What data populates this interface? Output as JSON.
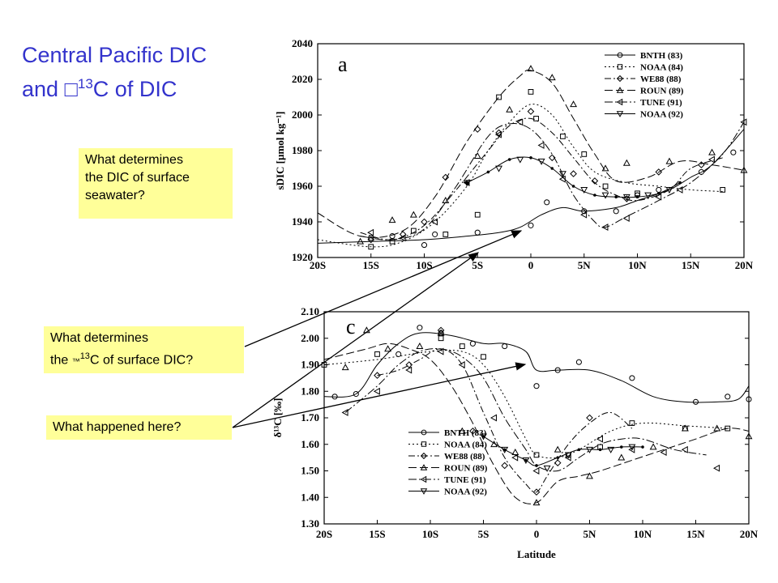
{
  "slide": {
    "title_line1": "Central Pacific DIC",
    "title_line2_pre": "and ",
    "title_glyph": "□",
    "title_sup": "13",
    "title_line2_post": "C  of DIC"
  },
  "notes": {
    "dic_question": [
      "What determines",
      "the DIC of surface",
      "seawater?"
    ],
    "d13c_question_line1": "What determines",
    "d13c_question_pre": "the ",
    "d13c_question_glyph": "™",
    "d13c_question_sup": "13",
    "d13c_question_post": "C of surface DIC?",
    "happened_question": "What happened here?"
  },
  "chart_data": [
    {
      "type": "line",
      "panel_label": "a",
      "ylabel": "sDIC [µmol kg⁻¹]",
      "xlabel": "",
      "ylim": [
        1920,
        2040
      ],
      "yticks": [
        "1920",
        "1940",
        "1960",
        "1980",
        "2000",
        "2020",
        "2040"
      ],
      "xlim": [
        -20,
        20
      ],
      "xticks": [
        "20S",
        "15S",
        "10S",
        "5S",
        "0",
        "5N",
        "10N",
        "15N",
        "20N"
      ],
      "legend_position": "top-right",
      "series": [
        {
          "name": "BNTH (83)",
          "marker": "circle",
          "dash": "none",
          "x": [
            -20,
            -15,
            -10,
            -6,
            -3,
            -1,
            1,
            3,
            5,
            8,
            10,
            13,
            15,
            17,
            20
          ],
          "y": [
            1928,
            1929,
            1930,
            1932,
            1934,
            1937,
            1944,
            1948,
            1946,
            1948,
            1952,
            1958,
            1965,
            1972,
            1992
          ],
          "points_x": [
            -15,
            -13,
            -10,
            -9,
            -5,
            0,
            1.5,
            5,
            8,
            10,
            12,
            16,
            19
          ],
          "points_y": [
            1931,
            1932,
            1927,
            1933,
            1934,
            1938,
            1951,
            1946,
            1946,
            1955,
            1958,
            1968,
            1979
          ]
        },
        {
          "name": "NOAA (84)",
          "marker": "square",
          "dash": "2,3",
          "x": [
            -20,
            -15,
            -12,
            -9,
            -6,
            -4,
            -2,
            0,
            2,
            4,
            6,
            9,
            12,
            15,
            18
          ],
          "y": [
            1930,
            1926,
            1929,
            1940,
            1960,
            1980,
            1996,
            2006,
            2000,
            1982,
            1968,
            1962,
            1960,
            1958,
            1957
          ],
          "points_x": [
            -15,
            -13,
            -11,
            -8,
            -5,
            -3,
            0,
            0.5,
            3,
            5,
            7,
            10,
            18
          ],
          "points_y": [
            1926,
            1929,
            1935,
            1933,
            1944,
            2010,
            2013,
            1998,
            1988,
            1978,
            1960,
            1956,
            1958
          ]
        },
        {
          "name": "WE88 (88)",
          "marker": "diamond",
          "dash": "8,3,2,3",
          "x": [
            -16,
            -13,
            -10,
            -7,
            -4,
            -2,
            0,
            2,
            4,
            6,
            8,
            10,
            13,
            15,
            18
          ],
          "y": [
            1934,
            1930,
            1938,
            1958,
            1980,
            1994,
            1998,
            1990,
            1976,
            1962,
            1955,
            1952,
            1958,
            1970,
            1976
          ],
          "points_x": [
            -15,
            -12,
            -10,
            -8,
            -5,
            -3,
            0,
            2,
            4,
            6,
            9,
            12,
            16
          ],
          "points_y": [
            1930,
            1933,
            1940,
            1965,
            1992,
            1990,
            2002,
            1976,
            1967,
            1963,
            1953,
            1968,
            1972
          ]
        },
        {
          "name": "ROUN (89)",
          "marker": "triangle",
          "dash": "10,4",
          "x": [
            -20,
            -16,
            -12,
            -9,
            -6,
            -3,
            -1,
            0,
            2,
            4,
            6,
            8,
            11,
            14,
            17,
            20
          ],
          "y": [
            1945,
            1932,
            1935,
            1954,
            1985,
            2010,
            2022,
            2025,
            2018,
            1998,
            1978,
            1963,
            1965,
            1974,
            1972,
            1969
          ],
          "points_x": [
            -16,
            -13,
            -11,
            -8,
            -5,
            -2,
            0,
            2,
            4,
            7,
            9,
            13,
            17,
            20
          ],
          "points_y": [
            1929,
            1941,
            1944,
            1952,
            1977,
            2003,
            2026,
            2021,
            2006,
            1970,
            1973,
            1974,
            1979,
            1969
          ]
        },
        {
          "name": "TUNE (91)",
          "marker": "triangle-left",
          "dash": "10,3,2,3",
          "x": [
            -16,
            -13,
            -10,
            -7,
            -4,
            -2,
            0,
            2,
            4,
            6,
            7,
            9,
            12,
            15,
            18,
            20
          ],
          "y": [
            1932,
            1930,
            1936,
            1960,
            1988,
            1995,
            1992,
            1978,
            1955,
            1940,
            1937,
            1943,
            1952,
            1962,
            1978,
            1996
          ],
          "points_x": [
            -15,
            -12,
            -9,
            -6,
            -3,
            -1,
            1,
            3,
            5,
            7,
            9,
            12,
            14,
            17,
            20
          ],
          "points_y": [
            1934,
            1931,
            1940,
            1962,
            1989,
            1996,
            1983,
            1964,
            1944,
            1937,
            1942,
            1954,
            1958,
            1975,
            1996
          ]
        },
        {
          "name": "NOAA (92)",
          "marker": "triangle-down",
          "dash": "none",
          "dots": true,
          "x": [
            -6,
            -4,
            -2,
            0,
            2,
            4,
            6,
            8,
            10,
            12,
            14
          ],
          "y": [
            1962,
            1968,
            1975,
            1976,
            1970,
            1960,
            1955,
            1954,
            1954,
            1956,
            1962
          ],
          "points_x": [
            -6,
            -3,
            -1,
            1,
            3,
            5,
            7,
            9,
            11,
            13
          ],
          "points_y": [
            1962,
            1970,
            1975,
            1974,
            1967,
            1958,
            1955,
            1954,
            1955,
            1958
          ]
        }
      ]
    },
    {
      "type": "line",
      "panel_label": "c",
      "ylabel": "δ¹³C [‰]",
      "xlabel": "Latitude",
      "ylim": [
        1.3,
        2.1
      ],
      "yticks": [
        "1.30",
        "1.40",
        "1.50",
        "1.60",
        "1.70",
        "1.80",
        "1.90",
        "2.00",
        "2.10"
      ],
      "xlim": [
        -20,
        20
      ],
      "xticks": [
        "20S",
        "15S",
        "10S",
        "5S",
        "0",
        "5N",
        "10N",
        "15N",
        "20N"
      ],
      "legend_position": "bottom-left",
      "series": [
        {
          "name": "BNTH (83)",
          "marker": "circle",
          "dash": "none",
          "x": [
            -20,
            -17,
            -15,
            -13,
            -11,
            -8,
            -5,
            -3,
            -1,
            0,
            2,
            5,
            8,
            11,
            14,
            17,
            19,
            20
          ],
          "y": [
            1.78,
            1.79,
            1.9,
            1.98,
            2.02,
            2.01,
            1.98,
            1.98,
            1.95,
            1.88,
            1.88,
            1.88,
            1.84,
            1.78,
            1.76,
            1.76,
            1.77,
            1.82
          ],
          "points_x": [
            -19,
            -17,
            -13,
            -11,
            -9,
            -6,
            -3,
            0,
            2,
            4,
            9,
            15,
            18,
            20
          ],
          "points_y": [
            1.78,
            1.79,
            1.94,
            2.04,
            2.02,
            1.98,
            1.97,
            1.82,
            1.88,
            1.91,
            1.85,
            1.76,
            1.78,
            1.77
          ]
        },
        {
          "name": "NOAA (84)",
          "marker": "square",
          "dash": "2,3",
          "x": [
            -20,
            -15,
            -10,
            -7,
            -5,
            -3,
            -1,
            0,
            2,
            4,
            7,
            10,
            14,
            18
          ],
          "y": [
            1.9,
            1.92,
            1.95,
            1.95,
            1.9,
            1.78,
            1.62,
            1.56,
            1.55,
            1.58,
            1.65,
            1.68,
            1.67,
            1.66
          ],
          "points_x": [
            -20,
            -15,
            -9,
            -7,
            -5,
            0,
            3,
            6,
            9,
            14,
            18
          ],
          "points_y": [
            1.9,
            1.94,
            2.0,
            1.97,
            1.93,
            1.56,
            1.56,
            1.59,
            1.68,
            1.66,
            1.66
          ]
        },
        {
          "name": "WE88 (88)",
          "marker": "diamond",
          "dash": "8,3,2,3",
          "x": [
            -15,
            -13,
            -11,
            -9,
            -7,
            -5,
            -3,
            -1,
            0,
            1,
            3,
            5,
            7,
            9
          ],
          "y": [
            1.86,
            1.88,
            1.92,
            1.96,
            1.9,
            1.72,
            1.55,
            1.45,
            1.42,
            1.48,
            1.6,
            1.68,
            1.72,
            1.66
          ],
          "points_x": [
            -15,
            -12,
            -9,
            -6,
            -3,
            0,
            2,
            5
          ],
          "points_y": [
            1.86,
            1.9,
            2.03,
            1.65,
            1.52,
            1.42,
            1.53,
            1.7
          ]
        },
        {
          "name": "ROUN (89)",
          "marker": "triangle",
          "dash": "10,4",
          "x": [
            -20,
            -16,
            -14,
            -12,
            -10,
            -8,
            -6,
            -4,
            -2,
            0,
            2,
            4,
            6,
            9,
            12,
            15,
            18,
            20
          ],
          "y": [
            1.92,
            1.96,
            1.98,
            1.96,
            1.92,
            1.82,
            1.68,
            1.52,
            1.4,
            1.38,
            1.46,
            1.48,
            1.5,
            1.54,
            1.58,
            1.62,
            1.66,
            1.65
          ],
          "points_x": [
            -18,
            -16,
            -14,
            -11,
            -9,
            -7,
            -4,
            -2,
            0,
            2,
            5,
            8,
            11,
            14,
            17,
            20
          ],
          "points_y": [
            1.89,
            2.03,
            1.96,
            1.97,
            2.02,
            1.65,
            1.6,
            1.57,
            1.38,
            1.58,
            1.48,
            1.55,
            1.59,
            1.66,
            1.66,
            1.63
          ]
        },
        {
          "name": "TUNE (91)",
          "marker": "triangle-left",
          "dash": "10,3,2,3",
          "x": [
            -18,
            -15,
            -13,
            -11,
            -9,
            -7,
            -5,
            -3,
            -1,
            0,
            2,
            4,
            6,
            8,
            10,
            13,
            16
          ],
          "y": [
            1.72,
            1.82,
            1.9,
            1.95,
            1.96,
            1.93,
            1.85,
            1.7,
            1.58,
            1.52,
            1.5,
            1.55,
            1.6,
            1.62,
            1.62,
            1.58,
            1.56
          ],
          "points_x": [
            -18,
            -15,
            -12,
            -9,
            -7,
            -4,
            -2,
            0,
            3,
            6,
            9,
            12,
            14,
            17
          ],
          "points_y": [
            1.72,
            1.8,
            1.88,
            1.95,
            1.9,
            1.7,
            1.55,
            1.5,
            1.55,
            1.62,
            1.58,
            1.57,
            1.58,
            1.51
          ]
        },
        {
          "name": "NOAA (92)",
          "marker": "triangle-down",
          "dash": "none",
          "dots": true,
          "x": [
            -5,
            -3,
            -1,
            0,
            2,
            4,
            6,
            8,
            10
          ],
          "y": [
            1.63,
            1.58,
            1.54,
            1.52,
            1.55,
            1.58,
            1.58,
            1.59,
            1.59
          ],
          "points_x": [
            -5,
            -3,
            -1,
            1,
            3,
            5,
            7,
            9
          ],
          "points_y": [
            1.63,
            1.58,
            1.54,
            1.51,
            1.56,
            1.58,
            1.58,
            1.59
          ]
        }
      ]
    }
  ],
  "colors": {
    "title": "#3333cc",
    "note_bg": "#ffff99",
    "ink": "#000000"
  }
}
